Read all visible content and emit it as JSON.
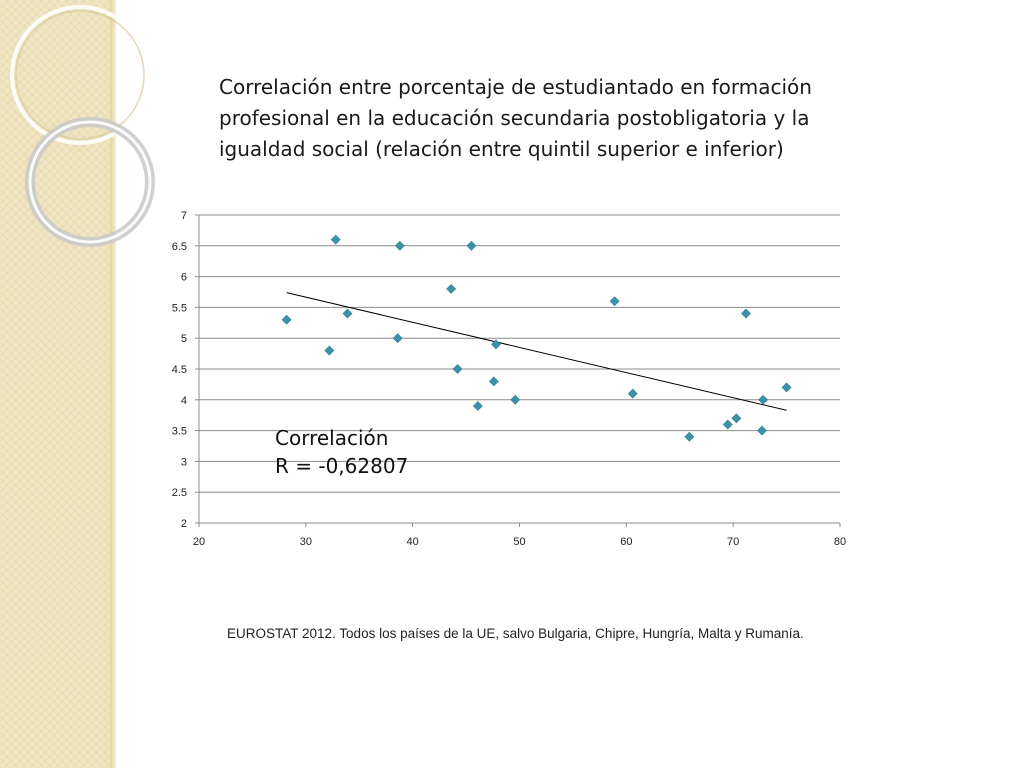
{
  "slide": {
    "title": "Correlación entre porcentaje de estudiantado en formación profesional en la educación secundaria postobligatoria y la igualdad social (relación entre quintil superior e inferior)",
    "annotation_line1": "Correlación",
    "annotation_line2": "R = -0,62807",
    "source": "EUROSTAT 2012. Todos los países de la UE, salvo Bulgaria, Chipre, Hungría, Malta y Rumanía."
  },
  "colors": {
    "marker": "#3a93a8",
    "trendline": "#000000",
    "grid": "#8c8c8c",
    "sidebar": "#f1e6c4"
  },
  "chart_data": {
    "type": "scatter",
    "xlim": [
      20,
      80
    ],
    "ylim": [
      2,
      7
    ],
    "x_ticks": [
      20,
      30,
      40,
      50,
      60,
      70,
      80
    ],
    "y_ticks": [
      2,
      2.5,
      3,
      3.5,
      4,
      4.5,
      5,
      5.5,
      6,
      6.5,
      7
    ],
    "grid": "horizontal",
    "legend": "none",
    "marker": "diamond",
    "points": [
      {
        "x": 28.2,
        "y": 5.3
      },
      {
        "x": 32.2,
        "y": 4.8
      },
      {
        "x": 32.8,
        "y": 6.6
      },
      {
        "x": 33.9,
        "y": 5.4
      },
      {
        "x": 38.6,
        "y": 5.0
      },
      {
        "x": 38.8,
        "y": 6.5
      },
      {
        "x": 43.6,
        "y": 5.8
      },
      {
        "x": 44.2,
        "y": 4.5
      },
      {
        "x": 45.5,
        "y": 6.5
      },
      {
        "x": 46.1,
        "y": 3.9
      },
      {
        "x": 47.6,
        "y": 4.3
      },
      {
        "x": 47.8,
        "y": 4.9
      },
      {
        "x": 49.6,
        "y": 4.0
      },
      {
        "x": 58.9,
        "y": 5.6
      },
      {
        "x": 60.6,
        "y": 4.1
      },
      {
        "x": 65.9,
        "y": 3.4
      },
      {
        "x": 69.5,
        "y": 3.6
      },
      {
        "x": 70.3,
        "y": 3.7
      },
      {
        "x": 71.2,
        "y": 5.4
      },
      {
        "x": 72.7,
        "y": 3.5
      },
      {
        "x": 72.8,
        "y": 4.0
      },
      {
        "x": 75.0,
        "y": 4.2
      }
    ],
    "trendline": {
      "x1": 28.2,
      "y1": 5.74,
      "x2": 75.0,
      "y2": 3.83
    }
  }
}
